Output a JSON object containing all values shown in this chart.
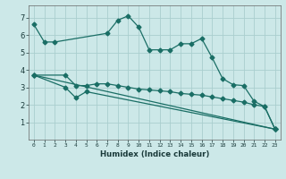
{
  "xlabel": "Humidex (Indice chaleur)",
  "bg_color": "#cce8e8",
  "grid_color": "#aacece",
  "line_color": "#1a6e65",
  "xlim": [
    -0.5,
    23.5
  ],
  "ylim": [
    0.0,
    7.7
  ],
  "yticks": [
    1,
    2,
    3,
    4,
    5,
    6,
    7
  ],
  "xticks": [
    0,
    1,
    2,
    3,
    4,
    5,
    6,
    7,
    8,
    9,
    10,
    11,
    12,
    13,
    14,
    15,
    16,
    17,
    18,
    19,
    20,
    21,
    22,
    23
  ],
  "line1_x": [
    0,
    1,
    2,
    7,
    8,
    9,
    10,
    11,
    12,
    13,
    14,
    15,
    16,
    17,
    18,
    19,
    20,
    21,
    22,
    23
  ],
  "line1_y": [
    6.6,
    5.6,
    5.6,
    6.1,
    6.85,
    7.1,
    6.45,
    5.15,
    5.15,
    5.15,
    5.5,
    5.5,
    5.8,
    4.7,
    3.5,
    3.15,
    3.1,
    2.2,
    1.9,
    0.6
  ],
  "line2_x": [
    0,
    3,
    4,
    5,
    6,
    7,
    8,
    9,
    10,
    11,
    12,
    13,
    14,
    15,
    16,
    17,
    18,
    19,
    20,
    21,
    22,
    23
  ],
  "line2_y": [
    3.7,
    3.7,
    3.1,
    3.1,
    3.2,
    3.2,
    3.1,
    3.0,
    2.9,
    2.85,
    2.8,
    2.75,
    2.65,
    2.6,
    2.55,
    2.45,
    2.35,
    2.25,
    2.15,
    2.0,
    1.9,
    0.6
  ],
  "line3_x": [
    0,
    3,
    4,
    5,
    23
  ],
  "line3_y": [
    3.7,
    3.0,
    2.4,
    2.75,
    0.6
  ],
  "line4_x": [
    0,
    23
  ],
  "line4_y": [
    3.7,
    0.6
  ]
}
